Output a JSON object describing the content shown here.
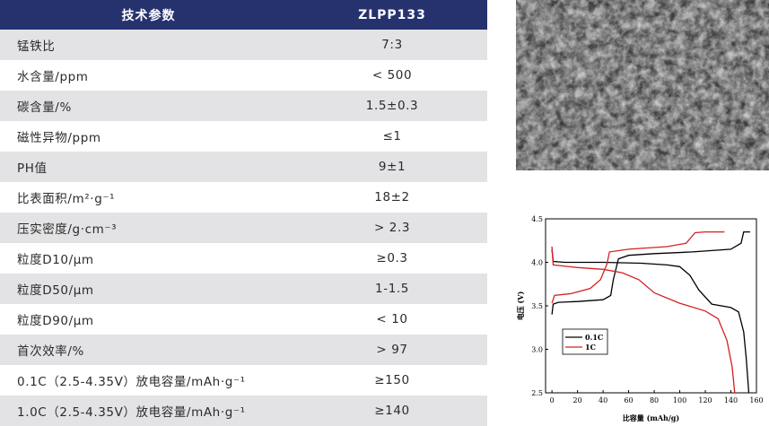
{
  "spec_table": {
    "header": {
      "param": "技术参数",
      "value": "ZLPP133"
    },
    "rows": [
      {
        "param": "锰铁比",
        "value": "7:3"
      },
      {
        "param": "水含量/ppm",
        "value": "< 500"
      },
      {
        "param": "碳含量/%",
        "value": "1.5±0.3"
      },
      {
        "param": "磁性异物/ppm",
        "value": "≤1"
      },
      {
        "param": "PH值",
        "value": "9±1"
      },
      {
        "param": "比表面积/m²·g⁻¹",
        "value": "18±2"
      },
      {
        "param": "压实密度/g·cm⁻³",
        "value": "> 2.3"
      },
      {
        "param": "粒度D10/μm",
        "value": "≥0.3"
      },
      {
        "param": "粒度D50/μm",
        "value": "1-1.5"
      },
      {
        "param": "粒度D90/μm",
        "value": "< 10"
      },
      {
        "param": "首次效率/%",
        "value": "> 97"
      },
      {
        "param": "0.1C（2.5-4.35V）放电容量/mAh·g⁻¹",
        "value": "≥150"
      },
      {
        "param": "1.0C（2.5-4.35V）放电容量/mAh·g⁻¹",
        "value": "≥140"
      }
    ],
    "colors": {
      "header_bg": "#26326e",
      "row_alt_bg": "#e3e3e5"
    }
  },
  "chart_data": {
    "type": "line",
    "xlabel": "比容量 (mAh/g)",
    "ylabel": "电压 (V)",
    "xlim": [
      -5,
      160
    ],
    "ylim": [
      2.5,
      4.5
    ],
    "xticks": [
      "0",
      "20",
      "40",
      "60",
      "80",
      "100",
      "120",
      "140",
      "160"
    ],
    "yticks": [
      "2.5",
      "3.0",
      "3.5",
      "4.0",
      "4.5"
    ],
    "legend_position": "bottom-left",
    "series": [
      {
        "name": "0.1C",
        "color": "#000000",
        "curves": [
          {
            "part": "charge",
            "points": [
              [
                0,
                3.4
              ],
              [
                1,
                3.52
              ],
              [
                5,
                3.54
              ],
              [
                20,
                3.55
              ],
              [
                40,
                3.57
              ],
              [
                46,
                3.62
              ],
              [
                48,
                3.8
              ],
              [
                52,
                4.04
              ],
              [
                60,
                4.08
              ],
              [
                80,
                4.1
              ],
              [
                110,
                4.12
              ],
              [
                140,
                4.15
              ],
              [
                148,
                4.22
              ],
              [
                150,
                4.35
              ],
              [
                155,
                4.35
              ]
            ]
          },
          {
            "part": "discharge",
            "points": [
              [
                0,
                4.15
              ],
              [
                1,
                4.01
              ],
              [
                10,
                4.0
              ],
              [
                40,
                4.0
              ],
              [
                70,
                3.99
              ],
              [
                90,
                3.97
              ],
              [
                100,
                3.95
              ],
              [
                108,
                3.85
              ],
              [
                115,
                3.68
              ],
              [
                125,
                3.52
              ],
              [
                140,
                3.48
              ],
              [
                146,
                3.43
              ],
              [
                150,
                3.2
              ],
              [
                152,
                2.9
              ],
              [
                154,
                2.5
              ]
            ]
          }
        ]
      },
      {
        "name": "1C",
        "color": "#d62020",
        "curves": [
          {
            "part": "charge",
            "points": [
              [
                0,
                3.53
              ],
              [
                2,
                3.62
              ],
              [
                15,
                3.64
              ],
              [
                30,
                3.7
              ],
              [
                38,
                3.8
              ],
              [
                43,
                3.98
              ],
              [
                45,
                4.12
              ],
              [
                60,
                4.15
              ],
              [
                90,
                4.18
              ],
              [
                105,
                4.22
              ],
              [
                112,
                4.34
              ],
              [
                120,
                4.35
              ],
              [
                135,
                4.35
              ]
            ]
          },
          {
            "part": "discharge",
            "points": [
              [
                0,
                4.18
              ],
              [
                1,
                3.97
              ],
              [
                20,
                3.94
              ],
              [
                40,
                3.92
              ],
              [
                55,
                3.88
              ],
              [
                68,
                3.8
              ],
              [
                80,
                3.65
              ],
              [
                100,
                3.53
              ],
              [
                120,
                3.44
              ],
              [
                130,
                3.35
              ],
              [
                137,
                3.1
              ],
              [
                141,
                2.8
              ],
              [
                143,
                2.5
              ]
            ]
          }
        ]
      }
    ]
  }
}
